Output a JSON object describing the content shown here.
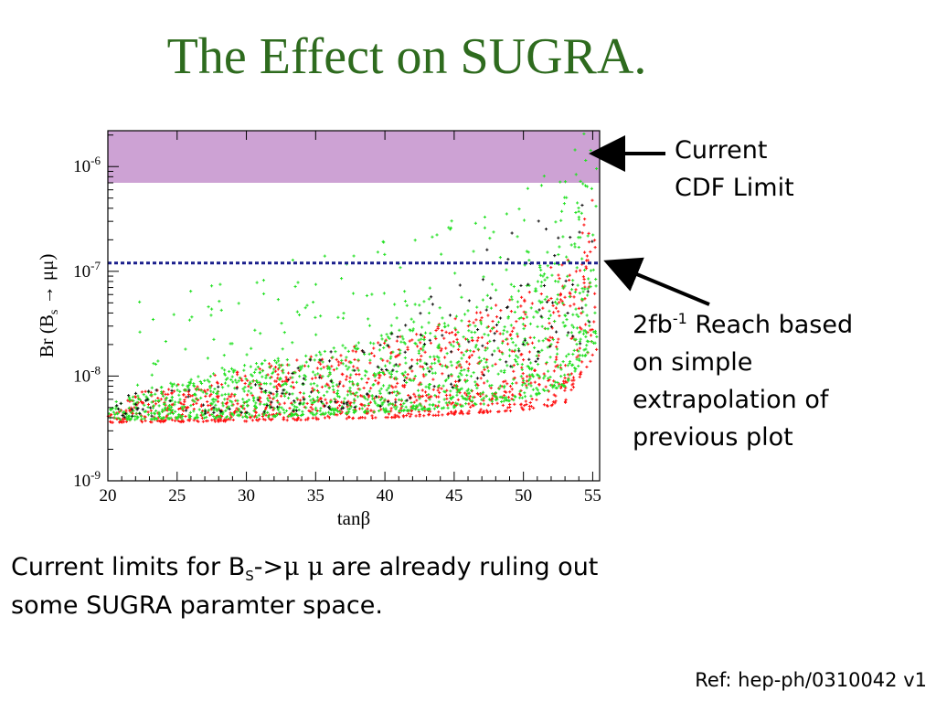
{
  "title": "The Effect on SUGRA.",
  "annotations": {
    "cdf_line1": "Current",
    "cdf_line2": "CDF Limit",
    "reach_prefix": "2fb",
    "reach_sup": "-1",
    "reach_rest1": " Reach based",
    "reach_line2": "on simple",
    "reach_line3": "extrapolation of",
    "reach_line4": "previous plot"
  },
  "bottom_text": {
    "part1": "Current limits for B",
    "sub": "S",
    "part2": "->",
    "mu1": "μ",
    "mu2": "μ",
    "part3": " are already ruling out",
    "line2": "some SUGRA paramter space."
  },
  "reference": "Ref: hep-ph/0310042 v1",
  "colors": {
    "title": "#2e6b1e",
    "excluded_band": "#cda2d4",
    "reach_line": "#1a1f8c",
    "red_points": "#ff1010",
    "green_points": "#22e022",
    "black_points": "#111111"
  },
  "chart_data": {
    "type": "scatter",
    "xlabel": "tanβ",
    "ylabel": "Br (B_s → μμ)",
    "ylabel_parts": {
      "pre": "Br (B",
      "sub": "s",
      "post": " → μμ)"
    },
    "xlim": [
      20,
      55.5
    ],
    "ylim": [
      1e-09,
      2.2e-06
    ],
    "log_y": true,
    "x_ticks": [
      20,
      25,
      30,
      35,
      40,
      45,
      50,
      55
    ],
    "y_ticks": [
      {
        "value": 1e-09,
        "base": "10",
        "exp": "-9"
      },
      {
        "value": 1e-08,
        "base": "10",
        "exp": "-8"
      },
      {
        "value": 1e-07,
        "base": "10",
        "exp": "-7"
      },
      {
        "value": 1e-06,
        "base": "10",
        "exp": "-6"
      }
    ],
    "cdf_excluded_band": {
      "from": 7e-07,
      "to": 2.2e-06
    },
    "reach_2fb": 1.2e-07,
    "series": [
      {
        "color": "red",
        "min_envelope": [
          [
            20,
            3.6e-09
          ],
          [
            30,
            3.7e-09
          ],
          [
            40,
            4e-09
          ],
          [
            45,
            4.3e-09
          ],
          [
            50,
            4.7e-09
          ],
          [
            53,
            5.5e-09
          ],
          [
            55,
            1.5e-08
          ]
        ],
        "max_envelope": [
          [
            20,
            6e-09
          ],
          [
            30,
            1.2e-08
          ],
          [
            40,
            2.2e-08
          ],
          [
            45,
            3.5e-08
          ],
          [
            50,
            6e-08
          ],
          [
            53,
            1.5e-07
          ],
          [
            55,
            6e-07
          ]
        ]
      },
      {
        "color": "green",
        "min_envelope": [
          [
            20,
            3.8e-09
          ],
          [
            30,
            4e-09
          ],
          [
            40,
            4.5e-09
          ],
          [
            45,
            5e-09
          ],
          [
            50,
            6e-09
          ],
          [
            53,
            8e-09
          ],
          [
            55,
            2e-08
          ]
        ],
        "max_envelope": [
          [
            20,
            6e-09
          ],
          [
            30,
            1.3e-08
          ],
          [
            40,
            2.5e-08
          ],
          [
            45,
            4e-08
          ],
          [
            50,
            8e-08
          ],
          [
            53,
            2e-07
          ],
          [
            55,
            1.5e-06
          ]
        ]
      },
      {
        "color": "black",
        "min_envelope": [
          [
            20,
            4e-09
          ],
          [
            40,
            5e-09
          ],
          [
            55,
            2e-08
          ]
        ],
        "max_envelope": [
          [
            20,
            6e-09
          ],
          [
            40,
            2.2e-08
          ],
          [
            55,
            1.8e-06
          ]
        ]
      }
    ]
  }
}
